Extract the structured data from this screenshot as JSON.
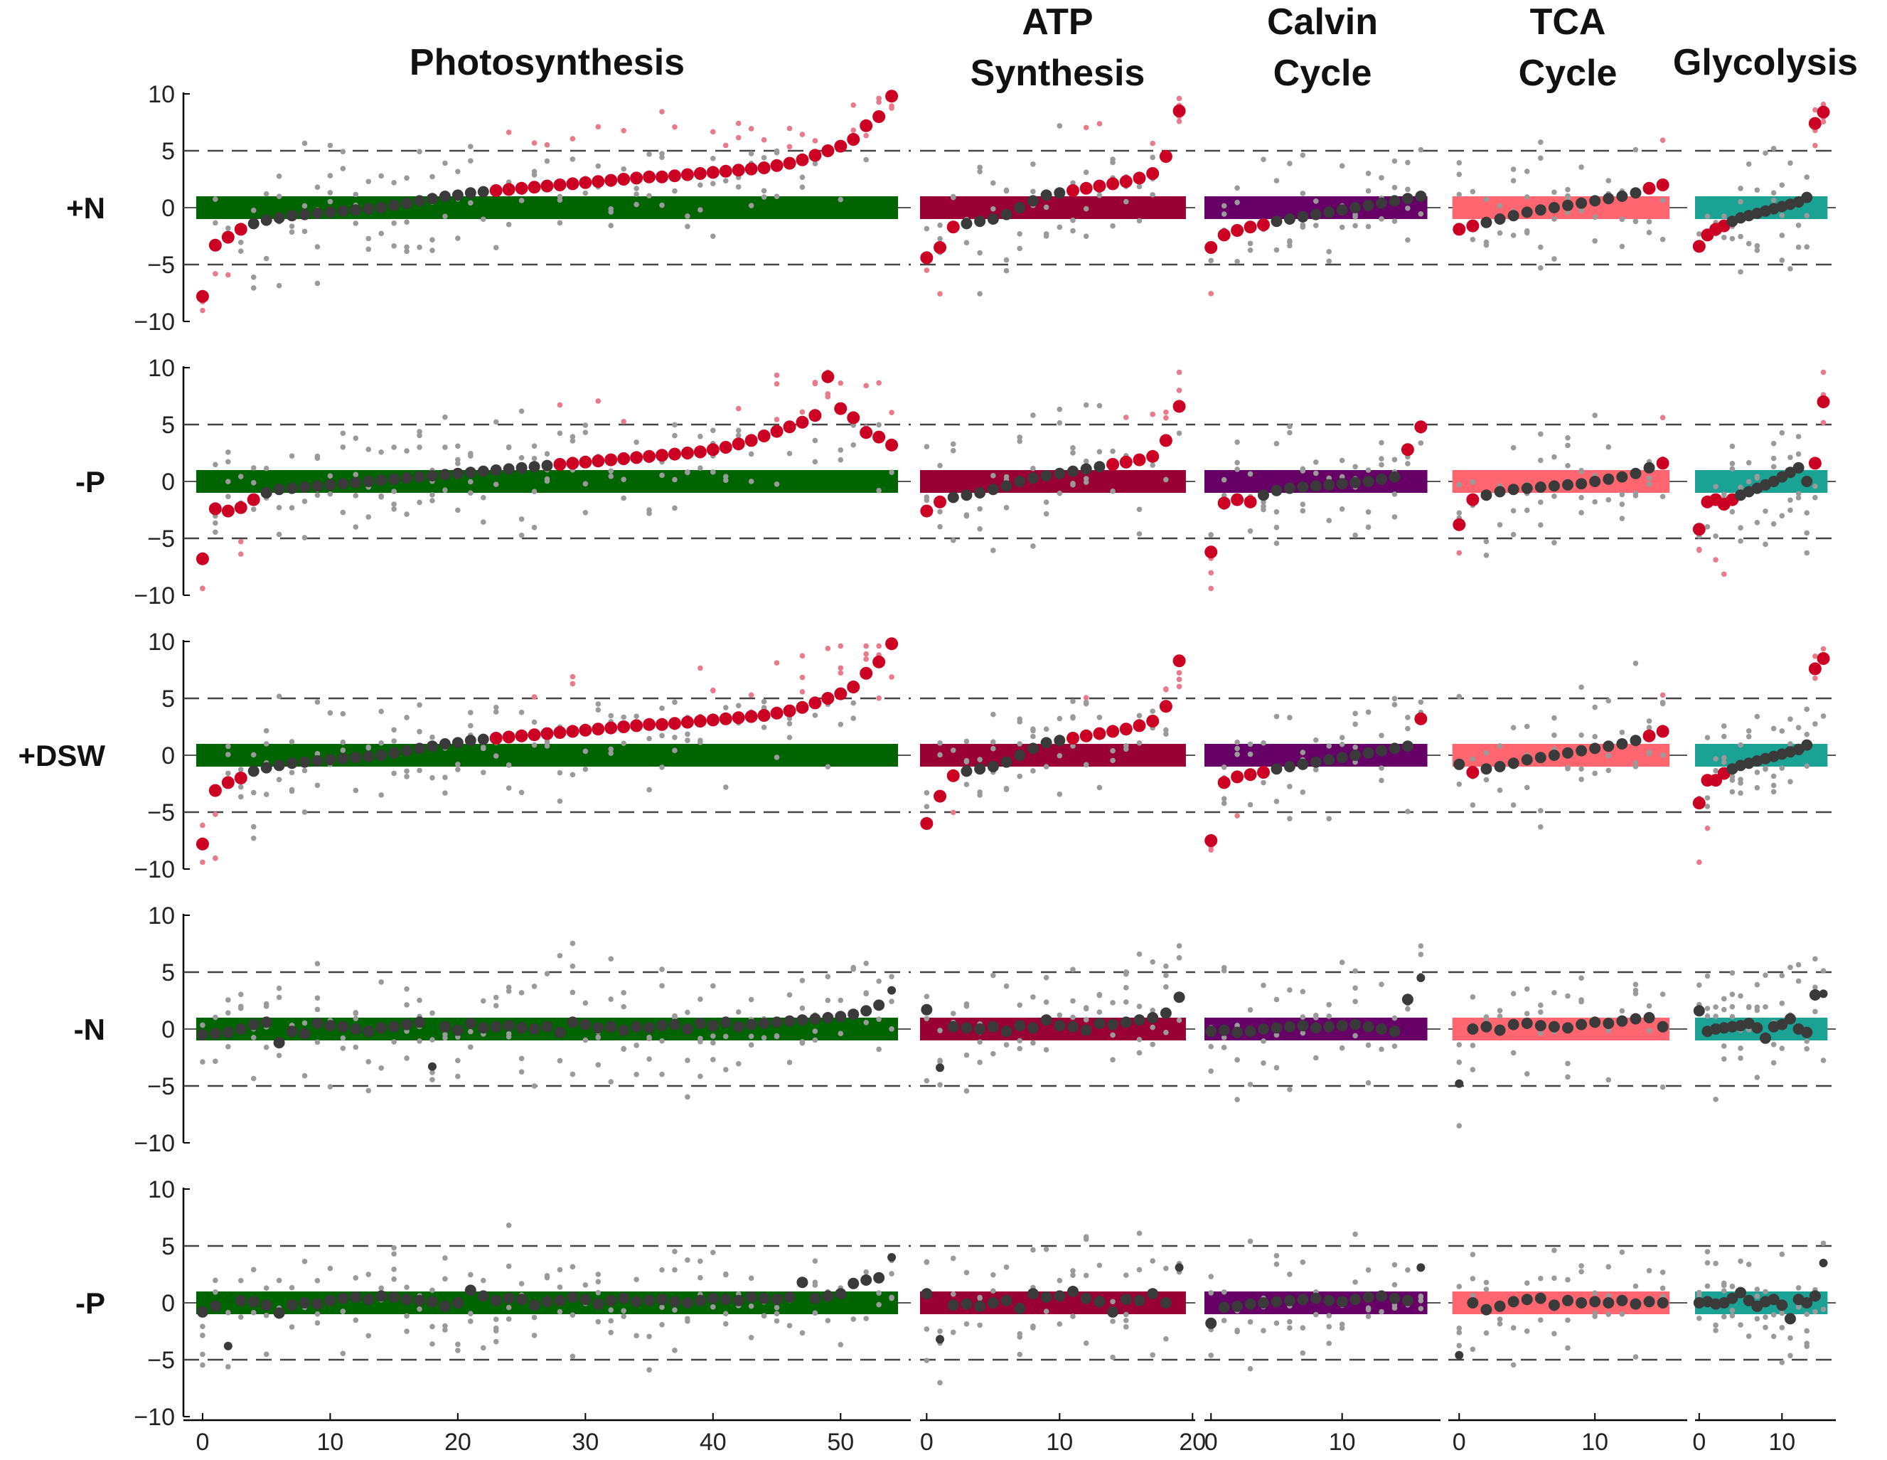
{
  "chart_data": {
    "type": "scatter",
    "panels": [
      {
        "name": "Photosynthesis",
        "title_lines": [
          "Photosynthesis"
        ],
        "color": "#006400",
        "xlim": [
          -1.5,
          55.5
        ],
        "xticks": [
          0,
          10,
          20,
          30,
          40,
          50
        ],
        "n": 55
      },
      {
        "name": "ATP Synthesis",
        "title_lines": [
          "ATP",
          "Synthesis"
        ],
        "color": "#990033",
        "xlim": [
          -0.5,
          20.2
        ],
        "xticks": [
          0,
          10,
          20
        ],
        "n": 20
      },
      {
        "name": "Calvin Cycle",
        "title_lines": [
          "Calvin",
          "Cycle"
        ],
        "color": "#660066",
        "xlim": [
          -0.5,
          17.5
        ],
        "xticks": [
          0,
          10
        ],
        "n": 17
      },
      {
        "name": "TCA Cycle",
        "title_lines": [
          "TCA",
          "Cycle"
        ],
        "color": "#ff6670",
        "xlim": [
          -0.8,
          16.8
        ],
        "xticks": [
          0,
          10
        ],
        "n": 16
      },
      {
        "name": "Glycolysis",
        "title_lines": [
          "Glycolysis"
        ],
        "color": "#1aa295",
        "xlim": [
          -0.5,
          16.5
        ],
        "xticks": [
          0,
          10
        ],
        "n": 16
      }
    ],
    "rows": [
      {
        "label": "+N",
        "trend": {
          "Photosynthesis": [
            -7.8,
            -3.3,
            -2.6,
            -1.9,
            -1.4,
            -1.1,
            -0.9,
            -0.7,
            -0.6,
            -0.5,
            -0.4,
            -0.3,
            -0.2,
            -0.1,
            0.0,
            0.2,
            0.4,
            0.6,
            0.8,
            1.0,
            1.1,
            1.3,
            1.4,
            1.5,
            1.6,
            1.7,
            1.8,
            1.9,
            2.0,
            2.1,
            2.2,
            2.3,
            2.4,
            2.5,
            2.6,
            2.7,
            2.7,
            2.8,
            2.9,
            3.0,
            3.1,
            3.2,
            3.3,
            3.4,
            3.5,
            3.7,
            3.9,
            4.2,
            4.6,
            5.0,
            5.4,
            6.0,
            7.2,
            8.0,
            10.8
          ],
          "ATP Synthesis": [
            -4.4,
            -3.5,
            -1.7,
            -1.4,
            -1.2,
            -1.0,
            -0.6,
            0.0,
            0.6,
            1.1,
            1.3,
            1.5,
            1.7,
            1.9,
            2.1,
            2.3,
            2.6,
            3.0,
            4.5,
            8.5
          ],
          "Calvin Cycle": [
            -3.5,
            -2.4,
            -2.0,
            -1.7,
            -1.5,
            -1.2,
            -1.0,
            -0.8,
            -0.6,
            -0.4,
            -0.2,
            0.0,
            0.2,
            0.4,
            0.6,
            0.8,
            1.0
          ],
          "TCA Cycle": [
            -1.9,
            -1.6,
            -1.3,
            -1.0,
            -0.7,
            -0.4,
            -0.2,
            0.0,
            0.2,
            0.4,
            0.6,
            0.8,
            1.0,
            1.3,
            1.7,
            2.0
          ],
          "Glycolysis": [
            -3.4,
            -2.4,
            -1.9,
            -1.6,
            -1.2,
            -0.9,
            -0.7,
            -0.5,
            -0.3,
            -0.1,
            0.1,
            0.3,
            0.5,
            0.9,
            7.4,
            8.4
          ]
        }
      },
      {
        "label": "-P",
        "trend": {
          "Photosynthesis": [
            -6.8,
            -2.4,
            -2.6,
            -2.3,
            -1.6,
            -1.0,
            -0.7,
            -0.6,
            -0.5,
            -0.4,
            -0.3,
            -0.2,
            -0.1,
            0.0,
            0.1,
            0.2,
            0.3,
            0.4,
            0.5,
            0.6,
            0.7,
            0.8,
            0.9,
            1.0,
            1.1,
            1.2,
            1.3,
            1.4,
            1.5,
            1.6,
            1.7,
            1.8,
            1.9,
            2.0,
            2.1,
            2.2,
            2.3,
            2.4,
            2.5,
            2.6,
            2.8,
            3.0,
            3.3,
            3.6,
            4.0,
            4.4,
            4.8,
            5.2,
            5.8,
            9.2,
            6.4,
            5.6,
            4.3,
            3.9,
            3.2
          ],
          "ATP Synthesis": [
            -2.6,
            -1.8,
            -1.4,
            -1.2,
            -1.0,
            -0.7,
            -0.4,
            0.0,
            0.3,
            0.5,
            0.7,
            0.9,
            1.1,
            1.3,
            1.5,
            1.7,
            1.9,
            2.2,
            3.6,
            6.6
          ],
          "Calvin Cycle": [
            -6.2,
            -1.9,
            -1.6,
            -1.8,
            -1.2,
            -0.8,
            -0.6,
            -0.5,
            -0.4,
            -0.3,
            -0.2,
            -0.1,
            0.0,
            0.2,
            0.4,
            2.8,
            4.8
          ],
          "TCA Cycle": [
            -3.8,
            -1.6,
            -1.2,
            -0.9,
            -0.7,
            -0.6,
            -0.5,
            -0.4,
            -0.3,
            -0.2,
            0.0,
            0.2,
            0.4,
            0.7,
            1.2,
            1.6
          ],
          "Glycolysis": [
            -4.2,
            -1.8,
            -1.6,
            -2.0,
            -1.6,
            -1.2,
            -0.9,
            -0.6,
            -0.3,
            0.0,
            0.4,
            0.8,
            1.2,
            0.0,
            1.6,
            7.0
          ]
        }
      },
      {
        "label": "+DSW",
        "trend": {
          "Photosynthesis": [
            -7.8,
            -3.1,
            -2.4,
            -2.0,
            -1.4,
            -1.1,
            -0.9,
            -0.7,
            -0.6,
            -0.5,
            -0.4,
            -0.3,
            -0.2,
            -0.1,
            0.0,
            0.2,
            0.4,
            0.6,
            0.8,
            1.0,
            1.1,
            1.3,
            1.4,
            1.5,
            1.6,
            1.7,
            1.8,
            1.9,
            2.0,
            2.1,
            2.2,
            2.3,
            2.4,
            2.5,
            2.6,
            2.7,
            2.7,
            2.8,
            2.9,
            3.0,
            3.1,
            3.2,
            3.3,
            3.4,
            3.5,
            3.7,
            3.9,
            4.2,
            4.6,
            5.0,
            5.4,
            6.0,
            7.2,
            8.2,
            10.5
          ],
          "ATP Synthesis": [
            -6.0,
            -3.6,
            -1.8,
            -1.4,
            -1.2,
            -1.0,
            -0.6,
            0.0,
            0.6,
            1.1,
            1.3,
            1.5,
            1.7,
            1.9,
            2.1,
            2.3,
            2.6,
            3.0,
            4.3,
            8.3
          ],
          "Calvin Cycle": [
            -7.5,
            -2.4,
            -1.9,
            -1.7,
            -1.5,
            -1.2,
            -1.0,
            -0.8,
            -0.6,
            -0.4,
            -0.2,
            0.0,
            0.2,
            0.4,
            0.6,
            0.8,
            3.2
          ],
          "TCA Cycle": [
            -0.8,
            -1.5,
            -1.2,
            -1.0,
            -0.7,
            -0.4,
            -0.2,
            0.0,
            0.2,
            0.4,
            0.6,
            0.8,
            1.0,
            1.3,
            1.7,
            2.1
          ],
          "Glycolysis": [
            -4.2,
            -2.2,
            -2.2,
            -1.6,
            -1.2,
            -0.9,
            -0.7,
            -0.5,
            -0.3,
            -0.1,
            0.1,
            0.3,
            0.5,
            0.9,
            7.6,
            8.5
          ]
        }
      },
      {
        "label": "-N",
        "trend": {
          "Photosynthesis": [
            -0.5,
            -0.4,
            -0.3,
            0.0,
            0.4,
            0.6,
            -1.2,
            -0.2,
            -0.4,
            0.5,
            0.3,
            0.2,
            0.0,
            -0.2,
            0.1,
            0.2,
            0.4,
            0.6,
            -3.3,
            0.2,
            -0.1,
            0.5,
            0.1,
            0.2,
            0.3,
            0.1,
            0.0,
            0.2,
            -0.3,
            0.6,
            0.4,
            0.1,
            0.2,
            -0.1,
            0.2,
            0.1,
            0.3,
            0.4,
            0.0,
            0.5,
            0.3,
            0.6,
            0.2,
            0.4,
            0.5,
            0.6,
            0.7,
            0.8,
            0.9,
            1.0,
            1.1,
            1.3,
            1.6,
            2.1,
            3.4
          ],
          "ATP Synthesis": [
            1.7,
            -3.4,
            0.2,
            0.1,
            0.0,
            0.2,
            -0.2,
            0.3,
            0.1,
            0.8,
            0.3,
            0.2,
            -0.1,
            0.5,
            0.4,
            0.6,
            0.8,
            1.0,
            1.4,
            2.8
          ],
          "Calvin Cycle": [
            -0.2,
            -0.1,
            -0.3,
            -0.2,
            0.0,
            0.1,
            0.2,
            0.3,
            0.1,
            0.2,
            0.3,
            0.4,
            0.2,
            0.0,
            -0.2,
            2.6,
            4.5
          ],
          "TCA Cycle": [
            -4.8,
            0.0,
            0.2,
            -0.1,
            0.4,
            0.5,
            0.3,
            0.2,
            0.1,
            0.4,
            0.6,
            0.5,
            0.7,
            0.9,
            1.0,
            0.2
          ],
          "Glycolysis": [
            1.6,
            -0.2,
            0.0,
            0.1,
            0.2,
            0.3,
            0.5,
            0.1,
            -0.8,
            0.2,
            0.4,
            0.9,
            0.0,
            -0.3,
            3.0,
            3.1
          ]
        }
      },
      {
        "label": "-P",
        "trend": {
          "Photosynthesis": [
            -0.8,
            -0.3,
            -3.8,
            0.2,
            0.1,
            -0.2,
            -0.9,
            -0.2,
            0.0,
            -0.1,
            0.2,
            0.4,
            0.5,
            0.3,
            0.6,
            0.5,
            0.3,
            0.2,
            0.1,
            -0.3,
            0.0,
            1.1,
            0.6,
            0.2,
            0.4,
            0.3,
            -0.2,
            0.1,
            0.2,
            0.5,
            0.3,
            -0.1,
            0.2,
            0.4,
            0.1,
            0.2,
            0.3,
            0.1,
            0.0,
            0.2,
            0.4,
            0.3,
            0.2,
            0.5,
            0.4,
            0.3,
            0.5,
            1.8,
            0.4,
            0.6,
            0.8,
            1.7,
            2.0,
            2.2,
            4.0
          ],
          "ATP Synthesis": [
            0.8,
            -3.2,
            -0.2,
            -0.1,
            -0.3,
            0.0,
            0.2,
            -0.5,
            0.8,
            0.5,
            0.6,
            1.0,
            0.4,
            0.1,
            -0.8,
            0.3,
            0.2,
            0.8,
            0.0,
            3.1
          ],
          "Calvin Cycle": [
            -1.8,
            -0.4,
            -0.3,
            -0.1,
            0.0,
            0.1,
            0.2,
            0.3,
            0.4,
            0.2,
            0.1,
            0.3,
            0.5,
            0.6,
            0.4,
            0.2,
            3.1
          ],
          "TCA Cycle": [
            -4.6,
            0.0,
            -0.6,
            -0.3,
            0.1,
            0.3,
            0.4,
            -0.2,
            0.2,
            0.0,
            0.1,
            0.0,
            0.2,
            -0.1,
            0.1,
            0.0
          ],
          "Glycolysis": [
            0.0,
            0.1,
            -0.1,
            0.0,
            0.4,
            0.9,
            0.2,
            -0.3,
            0.1,
            0.3,
            -0.2,
            -1.4,
            0.3,
            0.0,
            0.6,
            3.5
          ]
        }
      }
    ],
    "ylim": [
      -10,
      10
    ],
    "yticks": [
      -10,
      -5,
      0,
      5,
      10
    ],
    "ytick_labels": [
      "−10",
      "−5",
      "0",
      "5",
      "10"
    ],
    "reference_lines": [
      5,
      -5
    ],
    "band": [
      -1,
      1
    ],
    "marker_colors": {
      "significant": "#cc0022",
      "trend": "#3a3a3a",
      "replicate": "#9a9a9a",
      "replicate_significant": "#e87a8a"
    },
    "grid": false
  }
}
